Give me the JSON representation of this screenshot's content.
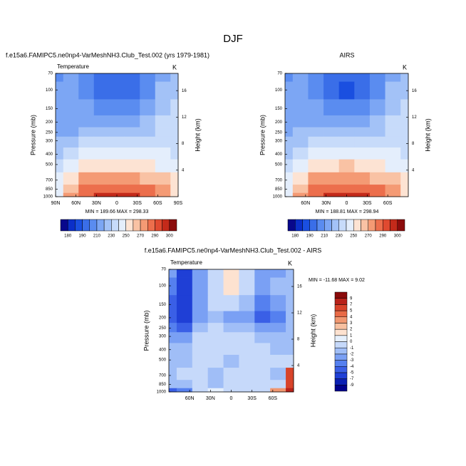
{
  "page_title": "DJF",
  "chart_data": [
    {
      "type": "contour",
      "title": "f.e15a6.FAMIPC5.ne0np4-VarMeshNH3.Club_Test.002 (yrs 1979-1981)",
      "left_string": "Temperature",
      "right_string": "K",
      "ylabel": "Pressure (mb)",
      "y2label": "Height (km)",
      "annotation": "MIN = 189.66  MAX = 298.33",
      "x": [
        90,
        67.5,
        45,
        22.5,
        0,
        -22.5,
        -45,
        -67.5,
        -90
      ],
      "y": [
        70,
        100,
        150,
        200,
        250,
        300,
        400,
        500,
        700,
        850,
        1000
      ],
      "z": [
        [
          205,
          210,
          205,
          198,
          195,
          198,
          205,
          215,
          222
        ],
        [
          210,
          213,
          205,
          195,
          190,
          195,
          208,
          222,
          228
        ],
        [
          215,
          217,
          210,
          205,
          203,
          206,
          215,
          228,
          230
        ],
        [
          217,
          218,
          216,
          215,
          215,
          216,
          222,
          230,
          230
        ],
        [
          217,
          219,
          222,
          225,
          225,
          225,
          225,
          230,
          230
        ],
        [
          220,
          224,
          230,
          232,
          232,
          232,
          230,
          232,
          232
        ],
        [
          228,
          236,
          243,
          245,
          246,
          245,
          240,
          240,
          238
        ],
        [
          235,
          245,
          254,
          258,
          259,
          258,
          252,
          248,
          245
        ],
        [
          245,
          258,
          270,
          275,
          276,
          275,
          268,
          262,
          255
        ],
        [
          248,
          265,
          280,
          286,
          287,
          286,
          280,
          270,
          258
        ],
        [
          246,
          270,
          288,
          296,
          298,
          296,
          288,
          272,
          255
        ]
      ],
      "xlim": [
        90,
        -90
      ],
      "xticks": [
        {
          "value": 90,
          "label": "90N"
        },
        {
          "value": 60,
          "label": "60N"
        },
        {
          "value": 30,
          "label": "30N"
        },
        0,
        {
          "value": -30,
          "label": "30S"
        },
        {
          "value": -60,
          "label": "60S"
        },
        {
          "value": -90,
          "label": "90S"
        }
      ],
      "ylim": [
        1000,
        70
      ],
      "ylog": true,
      "yticks": [
        70,
        100,
        150,
        200,
        250,
        300,
        400,
        500,
        700,
        850,
        1000
      ],
      "y2lim": [
        0,
        18.6
      ],
      "y2ticks": [
        4,
        8,
        12,
        16
      ],
      "colorbar": {
        "orientation": "horizontal",
        "levels": [
          180,
          185,
          190,
          200,
          210,
          220,
          230,
          240,
          250,
          260,
          270,
          280,
          290,
          295,
          300
        ],
        "ticks": [
          180,
          190,
          210,
          230,
          250,
          270,
          290,
          300
        ],
        "colors": [
          "#08088c",
          "#0b2fc9",
          "#1a4fe0",
          "#3a6ee8",
          "#5a8cf0",
          "#7ca6f4",
          "#a3c2f7",
          "#c7dbfa",
          "#e4eefc",
          "#fde3d3",
          "#f9c2a4",
          "#f49a74",
          "#ec6e4c",
          "#e04a30",
          "#c42a1a",
          "#8c0c0c"
        ]
      }
    },
    {
      "type": "contour",
      "title": "AIRS",
      "right_string": "K",
      "ylabel": "Pressure (mb)",
      "y2label": "Height (km)",
      "annotation": "MIN = 188.81  MAX = 298.94",
      "x": [
        90,
        67.5,
        45,
        22.5,
        0,
        -22.5,
        -45,
        -67.5,
        -90
      ],
      "y": [
        70,
        100,
        150,
        200,
        250,
        300,
        400,
        500,
        700,
        850,
        1000
      ],
      "z": [
        [
          206,
          211,
          206,
          198,
          195,
          198,
          206,
          216,
          222
        ],
        [
          211,
          214,
          205,
          194,
          189,
          195,
          209,
          223,
          228
        ],
        [
          216,
          218,
          211,
          205,
          203,
          206,
          216,
          228,
          230
        ],
        [
          218,
          219,
          217,
          216,
          215,
          216,
          223,
          230,
          230
        ],
        [
          218,
          220,
          223,
          226,
          226,
          226,
          226,
          230,
          230
        ],
        [
          221,
          225,
          231,
          233,
          233,
          233,
          231,
          232,
          232
        ],
        [
          229,
          237,
          244,
          246,
          247,
          246,
          241,
          240,
          238
        ],
        [
          236,
          246,
          255,
          259,
          260,
          259,
          253,
          248,
          245
        ],
        [
          246,
          259,
          271,
          276,
          277,
          276,
          269,
          262,
          254
        ],
        [
          249,
          266,
          281,
          287,
          288,
          287,
          281,
          270,
          256
        ],
        [
          247,
          271,
          289,
          297,
          299,
          297,
          289,
          273,
          254
        ]
      ],
      "xlim": [
        90,
        -90
      ],
      "xticks": [
        {
          "value": 60,
          "label": "60N"
        },
        {
          "value": 30,
          "label": "30N"
        },
        0,
        {
          "value": -30,
          "label": "30S"
        },
        {
          "value": -60,
          "label": "60S"
        }
      ],
      "ylim": [
        1000,
        70
      ],
      "ylog": true,
      "yticks": [
        70,
        100,
        150,
        200,
        250,
        300,
        400,
        500,
        700,
        850,
        1000
      ],
      "y2lim": [
        0,
        18.6
      ],
      "y2ticks": [
        4,
        8,
        12,
        16
      ],
      "colorbar": {
        "orientation": "horizontal",
        "levels": [
          180,
          185,
          190,
          200,
          210,
          220,
          230,
          240,
          250,
          260,
          270,
          280,
          290,
          295,
          300
        ],
        "ticks": [
          180,
          190,
          210,
          230,
          250,
          270,
          290,
          300
        ],
        "colors": [
          "#08088c",
          "#0b2fc9",
          "#1a4fe0",
          "#3a6ee8",
          "#5a8cf0",
          "#7ca6f4",
          "#a3c2f7",
          "#c7dbfa",
          "#e4eefc",
          "#fde3d3",
          "#f9c2a4",
          "#f49a74",
          "#ec6e4c",
          "#e04a30",
          "#c42a1a",
          "#8c0c0c"
        ]
      }
    },
    {
      "type": "contour",
      "title": "f.e15a6.FAMIPC5.ne0np4-VarMeshNH3.Club_Test.002 - AIRS",
      "left_string": "Temperature",
      "right_string": "K",
      "ylabel": "Pressure (mb)",
      "y2label": "Height (km)",
      "annotation": "MIN = -11.68  MAX =  9.02",
      "x": [
        90,
        67.5,
        45,
        22.5,
        0,
        -22.5,
        -45,
        -67.5,
        -90
      ],
      "y": [
        70,
        100,
        150,
        200,
        250,
        300,
        400,
        500,
        700,
        850,
        1000
      ],
      "z": [
        [
          -3,
          -6,
          -3,
          -1,
          1,
          -1,
          -3,
          -3,
          -2
        ],
        [
          -4,
          -7,
          -3,
          -1,
          1,
          -1,
          -3,
          -2,
          -2
        ],
        [
          -5,
          -7,
          -3,
          -1,
          -1,
          -2,
          -4,
          -3,
          -2
        ],
        [
          -5,
          -6,
          -3,
          -2,
          -3,
          -3,
          -5,
          -4,
          -2
        ],
        [
          -4,
          -5,
          -2,
          -1,
          -2,
          -2,
          -3,
          -3,
          -2
        ],
        [
          -3,
          -3,
          -1,
          -1,
          -1,
          -1,
          -2,
          -2,
          -2
        ],
        [
          -2,
          -2,
          -1,
          -1,
          -1,
          -1,
          -1,
          -2,
          -2
        ],
        [
          -2,
          -2,
          -1,
          -1,
          -2,
          -1,
          -1,
          -1,
          -1
        ],
        [
          -2,
          -1,
          -1,
          -2,
          -1,
          -1,
          -1,
          -2,
          5
        ],
        [
          -2,
          -2,
          -1,
          -2,
          -1,
          -1,
          -1,
          -1,
          6
        ],
        [
          -5,
          -4,
          -1,
          0,
          -1,
          -1,
          -1,
          3,
          7
        ]
      ],
      "xlim": [
        90,
        -90
      ],
      "xticks": [
        {
          "value": 60,
          "label": "60N"
        },
        {
          "value": 30,
          "label": "30N"
        },
        0,
        {
          "value": -30,
          "label": "30S"
        },
        {
          "value": -60,
          "label": "60S"
        }
      ],
      "ylim": [
        1000,
        70
      ],
      "ylog": true,
      "yticks": [
        70,
        100,
        150,
        200,
        250,
        300,
        400,
        500,
        700,
        850,
        1000
      ],
      "y2lim": [
        0,
        18.6
      ],
      "y2ticks": [
        4,
        8,
        12,
        16
      ],
      "colorbar": {
        "orientation": "vertical",
        "levels": [
          -9,
          -7,
          -5,
          -4,
          -3,
          -2,
          -1,
          0,
          1,
          2,
          3,
          4,
          5,
          7,
          9
        ],
        "ticks": [
          -9,
          -7,
          -5,
          -4,
          -3,
          -2,
          -1,
          0,
          1,
          2,
          3,
          4,
          5,
          7,
          9
        ],
        "colors": [
          "#00008c",
          "#0a1fb3",
          "#1f3fd6",
          "#3a5fe6",
          "#5580ef",
          "#7aa0f4",
          "#a0bef7",
          "#c6d9fa",
          "#e6f0fd",
          "#fde2d0",
          "#f7c0a0",
          "#f09770",
          "#e86a46",
          "#d8432a",
          "#b8221a",
          "#8a0a0a"
        ]
      }
    }
  ]
}
